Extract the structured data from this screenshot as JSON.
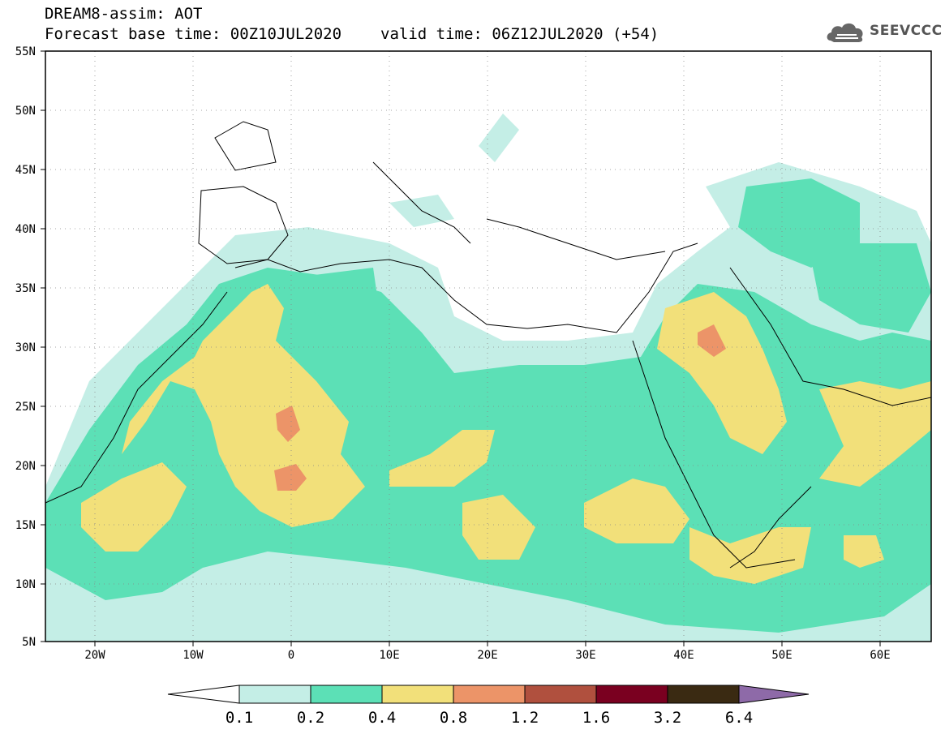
{
  "header": {
    "title": "DREAM8-assim: AOT",
    "base_time": "Forecast base time: 00Z10JUL2020",
    "valid_time": "valid time: 06Z12JUL2020 (+54)"
  },
  "logo": {
    "text": "SEEVCCC",
    "icon": "cloud-icon"
  },
  "map": {
    "lat_labels": [
      "55N",
      "50N",
      "45N",
      "40N",
      "35N",
      "30N",
      "25N",
      "20N",
      "15N",
      "10N",
      "5N"
    ],
    "lon_labels": [
      "20W",
      "10W",
      "0",
      "10E",
      "20E",
      "30E",
      "40E",
      "50E",
      "60E"
    ],
    "lon_range": [
      -25,
      65
    ],
    "lat_range": [
      5,
      55
    ],
    "grid": "dotted"
  },
  "colorbar": {
    "labels": [
      "0.1",
      "0.2",
      "0.4",
      "0.8",
      "1.2",
      "1.6",
      "3.2",
      "6.4"
    ],
    "colors": [
      "#ffffff",
      "#c4eee6",
      "#5ce0b6",
      "#f2e07a",
      "#ec9468",
      "#b0503e",
      "#7a0020",
      "#3a2a12",
      "#8e6aa8"
    ]
  }
}
